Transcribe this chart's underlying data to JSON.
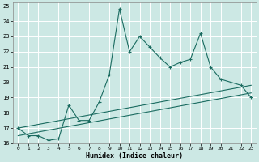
{
  "xlabel": "Humidex (Indice chaleur)",
  "bg_color": "#cce8e4",
  "grid_color": "#ffffff",
  "line_color": "#1a6b60",
  "xlim": [
    -0.5,
    23.5
  ],
  "ylim": [
    16,
    25.2
  ],
  "xticks": [
    0,
    1,
    2,
    3,
    4,
    5,
    6,
    7,
    8,
    9,
    10,
    11,
    12,
    13,
    14,
    15,
    16,
    17,
    18,
    19,
    20,
    21,
    22,
    23
  ],
  "yticks": [
    16,
    17,
    18,
    19,
    20,
    21,
    22,
    23,
    24,
    25
  ],
  "line1_x": [
    0,
    1,
    2,
    3,
    4,
    5,
    6,
    7,
    8,
    9,
    10,
    11,
    12,
    13,
    14,
    15,
    16,
    17,
    18,
    19,
    20,
    21,
    22,
    23
  ],
  "line1_y": [
    17.0,
    16.5,
    16.5,
    16.2,
    16.3,
    18.5,
    17.5,
    17.5,
    18.7,
    20.5,
    24.8,
    22.0,
    23.0,
    22.3,
    21.6,
    21.0,
    21.3,
    21.5,
    23.2,
    21.0,
    20.2,
    20.0,
    19.8,
    19.0
  ],
  "line2_x": [
    0,
    23
  ],
  "line2_y": [
    17.0,
    19.8
  ],
  "line3_x": [
    0,
    23
  ],
  "line3_y": [
    16.5,
    19.3
  ]
}
